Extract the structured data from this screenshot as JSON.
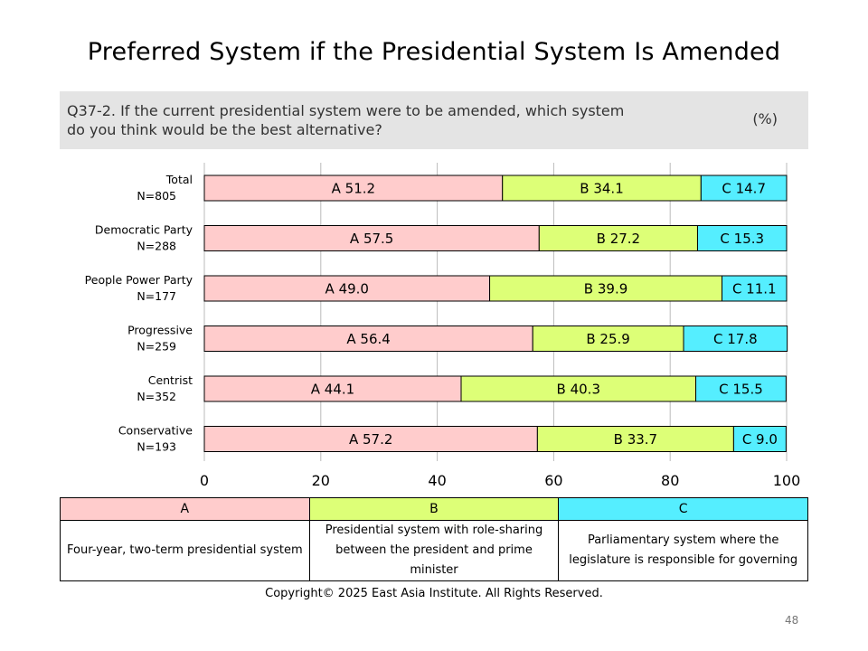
{
  "slide": {
    "title": "Preferred System if the Presidential System Is Amended",
    "question": "Q37-2. If the current presidential system were to be amended, which system do you think would be the best alternative?",
    "unit": "(%)",
    "copyright": "Copyright© 2025 East Asia Institute. All Rights Reserved.",
    "page_number": "48"
  },
  "legend": {
    "headers": [
      "A",
      "B",
      "C"
    ],
    "descriptions": [
      "Four-year, two-term presidential system",
      "Presidential system with role-sharing between the president and prime minister",
      "Parliamentary system where the legislature is responsible for governing"
    ]
  },
  "colors": {
    "A": "#ffcccc",
    "B": "#ddff77",
    "C": "#55eeff",
    "border": "#000000",
    "grid": "#bbbbbb"
  },
  "chart_data": {
    "type": "bar",
    "orientation": "horizontal",
    "stacked": true,
    "categories": [
      [
        "Total",
        "N=805"
      ],
      [
        "Democratic Party",
        "N=288"
      ],
      [
        "People Power Party",
        "N=177"
      ],
      [
        "Progressive",
        "N=259"
      ],
      [
        "Centrist",
        "N=352"
      ],
      [
        "Conservative",
        "N=193"
      ]
    ],
    "series": [
      {
        "name": "A",
        "values": [
          51.2,
          57.5,
          49.0,
          56.4,
          44.1,
          57.2
        ]
      },
      {
        "name": "B",
        "values": [
          34.1,
          27.2,
          39.9,
          25.9,
          40.3,
          33.7
        ]
      },
      {
        "name": "C",
        "values": [
          14.7,
          15.3,
          11.1,
          17.8,
          15.5,
          9.0
        ]
      }
    ],
    "xlim": [
      0,
      100
    ],
    "xticks": [
      0,
      20,
      40,
      60,
      80,
      100
    ],
    "grid": true
  }
}
